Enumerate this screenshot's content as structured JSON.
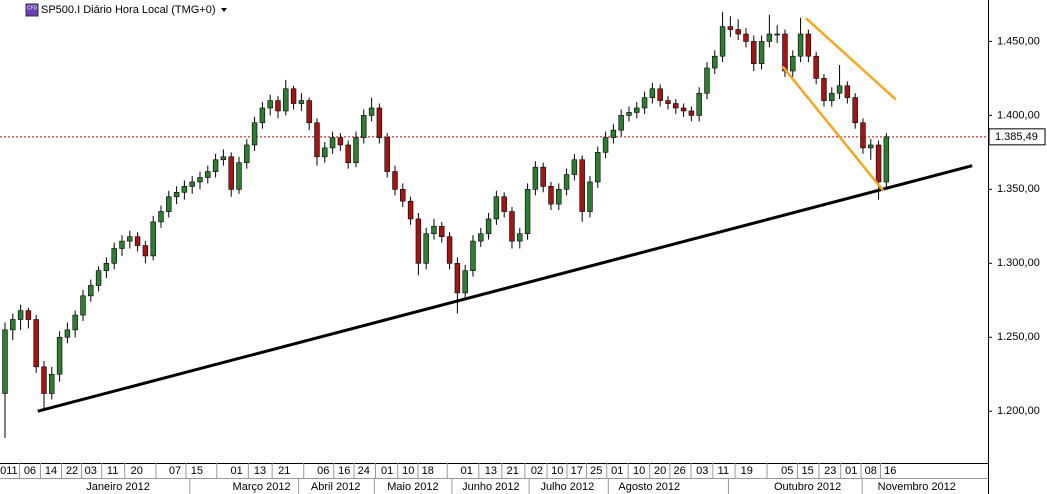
{
  "chart_data": {
    "type": "candlestick",
    "title": "SP500.I Diário Hora Local (TMG+0)",
    "badge": "CFD",
    "up_color": "#2e7d32",
    "down_color": "#a31515",
    "xlim": [
      -0.64,
      126.03
    ],
    "ylim": [
      1165,
      1478
    ],
    "yticks": [
      {
        "value": 1200,
        "label": "1.200,00"
      },
      {
        "value": 1250,
        "label": "1.250,00"
      },
      {
        "value": 1300,
        "label": "1.300,00"
      },
      {
        "value": 1350,
        "label": "1.350,00"
      },
      {
        "value": 1400,
        "label": "1.400,00"
      },
      {
        "value": 1450,
        "label": "1.450,00"
      }
    ],
    "xticks": [
      {
        "value": 0.5,
        "label": "011"
      },
      {
        "value": 3.2,
        "label": "06"
      },
      {
        "value": 5.9,
        "label": "14"
      },
      {
        "value": 8.6,
        "label": "22"
      },
      {
        "value": 11.0,
        "label": "03"
      },
      {
        "value": 13.8,
        "label": "11"
      },
      {
        "value": 16.9,
        "label": "20"
      },
      {
        "value": 21.8,
        "label": "07"
      },
      {
        "value": 24.6,
        "label": "15"
      },
      {
        "value": 29.7,
        "label": "01"
      },
      {
        "value": 32.7,
        "label": "13"
      },
      {
        "value": 35.8,
        "label": "21"
      },
      {
        "value": 40.8,
        "label": "06"
      },
      {
        "value": 43.5,
        "label": "16"
      },
      {
        "value": 46.0,
        "label": "24"
      },
      {
        "value": 49.0,
        "label": "01"
      },
      {
        "value": 51.7,
        "label": "10"
      },
      {
        "value": 54.2,
        "label": "18"
      },
      {
        "value": 59.2,
        "label": "01"
      },
      {
        "value": 62.3,
        "label": "13"
      },
      {
        "value": 65.1,
        "label": "21"
      },
      {
        "value": 68.2,
        "label": "02"
      },
      {
        "value": 70.8,
        "label": "10"
      },
      {
        "value": 73.3,
        "label": "17"
      },
      {
        "value": 75.8,
        "label": "25"
      },
      {
        "value": 78.5,
        "label": "01"
      },
      {
        "value": 81.3,
        "label": "10"
      },
      {
        "value": 84.0,
        "label": "20"
      },
      {
        "value": 86.5,
        "label": "26"
      },
      {
        "value": 89.4,
        "label": "03"
      },
      {
        "value": 92.1,
        "label": "11"
      },
      {
        "value": 95.1,
        "label": "19"
      },
      {
        "value": 100.3,
        "label": "05"
      },
      {
        "value": 102.9,
        "label": "15"
      },
      {
        "value": 105.8,
        "label": "23"
      },
      {
        "value": 108.5,
        "label": "01"
      },
      {
        "value": 111.0,
        "label": "08"
      },
      {
        "value": 113.5,
        "label": "16"
      }
    ],
    "month_ticks": [
      {
        "value": 14.5,
        "label": "Janeiro 2012"
      },
      {
        "value": 32.9,
        "label": "Março 2012"
      },
      {
        "value": 42.4,
        "label": "Abril 2012"
      },
      {
        "value": 52.3,
        "label": "Maio 2012"
      },
      {
        "value": 62.3,
        "label": "Junho 2012"
      },
      {
        "value": 72.1,
        "label": "Julho 2012"
      },
      {
        "value": 82.6,
        "label": "Agosto 2012"
      },
      {
        "value": 102.9,
        "label": "Outubro 2012"
      },
      {
        "value": 116.9,
        "label": "Novembro 2012"
      }
    ],
    "last_price": {
      "value": 1385.49,
      "label": "1.385,49"
    },
    "trendlines": [
      {
        "color": "#000000",
        "points": [
          [
            4.2,
            1200
          ],
          [
            124.0,
            1366
          ]
        ]
      },
      {
        "color": "#f5a623",
        "points": [
          [
            102.7,
            1465.6
          ],
          [
            114.2,
            1410.7
          ]
        ]
      },
      {
        "color": "#f5a623",
        "points": [
          [
            99.7,
            1433
          ],
          [
            112.6,
            1349
          ]
        ]
      }
    ],
    "ohlc": [
      [
        1212,
        1260,
        1182,
        1255
      ],
      [
        1255,
        1266,
        1248,
        1262
      ],
      [
        1262,
        1272,
        1255,
        1268
      ],
      [
        1268,
        1270,
        1256,
        1262
      ],
      [
        1262,
        1265,
        1226,
        1230
      ],
      [
        1230,
        1234,
        1202,
        1212
      ],
      [
        1212,
        1230,
        1208,
        1225
      ],
      [
        1225,
        1254,
        1220,
        1250
      ],
      [
        1250,
        1260,
        1246,
        1255
      ],
      [
        1255,
        1268,
        1250,
        1265
      ],
      [
        1265,
        1282,
        1261,
        1278
      ],
      [
        1278,
        1289,
        1274,
        1285
      ],
      [
        1285,
        1298,
        1281,
        1295
      ],
      [
        1295,
        1304,
        1290,
        1300
      ],
      [
        1300,
        1314,
        1296,
        1310
      ],
      [
        1310,
        1319,
        1305,
        1315
      ],
      [
        1315,
        1322,
        1310,
        1318
      ],
      [
        1318,
        1321,
        1308,
        1312
      ],
      [
        1312,
        1315,
        1300,
        1305
      ],
      [
        1305,
        1332,
        1302,
        1328
      ],
      [
        1328,
        1339,
        1324,
        1335
      ],
      [
        1335,
        1349,
        1331,
        1345
      ],
      [
        1345,
        1352,
        1340,
        1348
      ],
      [
        1348,
        1356,
        1343,
        1352
      ],
      [
        1352,
        1359,
        1347,
        1355
      ],
      [
        1355,
        1362,
        1350,
        1358
      ],
      [
        1358,
        1366,
        1354,
        1362
      ],
      [
        1362,
        1374,
        1358,
        1370
      ],
      [
        1370,
        1377,
        1366,
        1372
      ],
      [
        1372,
        1375,
        1345,
        1350
      ],
      [
        1350,
        1372,
        1347,
        1368
      ],
      [
        1368,
        1384,
        1364,
        1380
      ],
      [
        1380,
        1399,
        1376,
        1395
      ],
      [
        1395,
        1409,
        1391,
        1405
      ],
      [
        1405,
        1414,
        1400,
        1410
      ],
      [
        1410,
        1413,
        1398,
        1403
      ],
      [
        1403,
        1424,
        1400,
        1418
      ],
      [
        1418,
        1420,
        1404,
        1408
      ],
      [
        1408,
        1415,
        1403,
        1410
      ],
      [
        1410,
        1412,
        1390,
        1395
      ],
      [
        1395,
        1398,
        1366,
        1372
      ],
      [
        1372,
        1382,
        1368,
        1378
      ],
      [
        1378,
        1389,
        1374,
        1385
      ],
      [
        1385,
        1388,
        1376,
        1380
      ],
      [
        1380,
        1383,
        1364,
        1368
      ],
      [
        1368,
        1389,
        1365,
        1385
      ],
      [
        1385,
        1404,
        1381,
        1400
      ],
      [
        1400,
        1412,
        1396,
        1405
      ],
      [
        1405,
        1408,
        1381,
        1385
      ],
      [
        1385,
        1388,
        1358,
        1362
      ],
      [
        1362,
        1366,
        1346,
        1350
      ],
      [
        1350,
        1354,
        1338,
        1342
      ],
      [
        1342,
        1345,
        1326,
        1330
      ],
      [
        1330,
        1334,
        1292,
        1300
      ],
      [
        1300,
        1324,
        1296,
        1320
      ],
      [
        1320,
        1330,
        1316,
        1325
      ],
      [
        1325,
        1328,
        1314,
        1318
      ],
      [
        1318,
        1321,
        1296,
        1300
      ],
      [
        1300,
        1304,
        1266,
        1280
      ],
      [
        1280,
        1299,
        1276,
        1295
      ],
      [
        1295,
        1319,
        1291,
        1315
      ],
      [
        1315,
        1324,
        1311,
        1320
      ],
      [
        1320,
        1334,
        1316,
        1330
      ],
      [
        1330,
        1349,
        1326,
        1345
      ],
      [
        1345,
        1348,
        1331,
        1335
      ],
      [
        1335,
        1338,
        1310,
        1315
      ],
      [
        1315,
        1324,
        1310,
        1320
      ],
      [
        1320,
        1354,
        1316,
        1350
      ],
      [
        1350,
        1369,
        1346,
        1365
      ],
      [
        1365,
        1368,
        1348,
        1352
      ],
      [
        1352,
        1355,
        1336,
        1340
      ],
      [
        1340,
        1354,
        1336,
        1350
      ],
      [
        1350,
        1364,
        1346,
        1360
      ],
      [
        1360,
        1374,
        1356,
        1370
      ],
      [
        1370,
        1373,
        1328,
        1335
      ],
      [
        1335,
        1359,
        1331,
        1355
      ],
      [
        1355,
        1379,
        1351,
        1375
      ],
      [
        1375,
        1389,
        1371,
        1385
      ],
      [
        1385,
        1394,
        1381,
        1390
      ],
      [
        1390,
        1404,
        1386,
        1400
      ],
      [
        1400,
        1406,
        1396,
        1402
      ],
      [
        1402,
        1409,
        1398,
        1405
      ],
      [
        1405,
        1416,
        1401,
        1412
      ],
      [
        1412,
        1422,
        1408,
        1418
      ],
      [
        1418,
        1421,
        1406,
        1410
      ],
      [
        1410,
        1413,
        1404,
        1408
      ],
      [
        1408,
        1411,
        1401,
        1405
      ],
      [
        1405,
        1408,
        1399,
        1403
      ],
      [
        1403,
        1406,
        1396,
        1400
      ],
      [
        1400,
        1419,
        1396,
        1415
      ],
      [
        1415,
        1436,
        1411,
        1432
      ],
      [
        1432,
        1444,
        1428,
        1440
      ],
      [
        1440,
        1470,
        1436,
        1460
      ],
      [
        1460,
        1467,
        1453,
        1458
      ],
      [
        1458,
        1465,
        1451,
        1455
      ],
      [
        1455,
        1459,
        1446,
        1450
      ],
      [
        1450,
        1454,
        1430,
        1435
      ],
      [
        1435,
        1454,
        1431,
        1450
      ],
      [
        1450,
        1468,
        1446,
        1455
      ],
      [
        1455,
        1461,
        1449,
        1455
      ],
      [
        1455,
        1458,
        1426,
        1430
      ],
      [
        1430,
        1444,
        1426,
        1440
      ],
      [
        1440,
        1466,
        1436,
        1455
      ],
      [
        1455,
        1458,
        1436,
        1440
      ],
      [
        1440,
        1443,
        1421,
        1425
      ],
      [
        1425,
        1428,
        1406,
        1410
      ],
      [
        1410,
        1419,
        1406,
        1415
      ],
      [
        1415,
        1434,
        1411,
        1420
      ],
      [
        1420,
        1423,
        1408,
        1412
      ],
      [
        1412,
        1415,
        1391,
        1395
      ],
      [
        1395,
        1398,
        1374,
        1378
      ],
      [
        1378,
        1384,
        1370,
        1380
      ],
      [
        1380,
        1383,
        1343,
        1355
      ],
      [
        1355,
        1388,
        1351,
        1385.49
      ]
    ]
  }
}
